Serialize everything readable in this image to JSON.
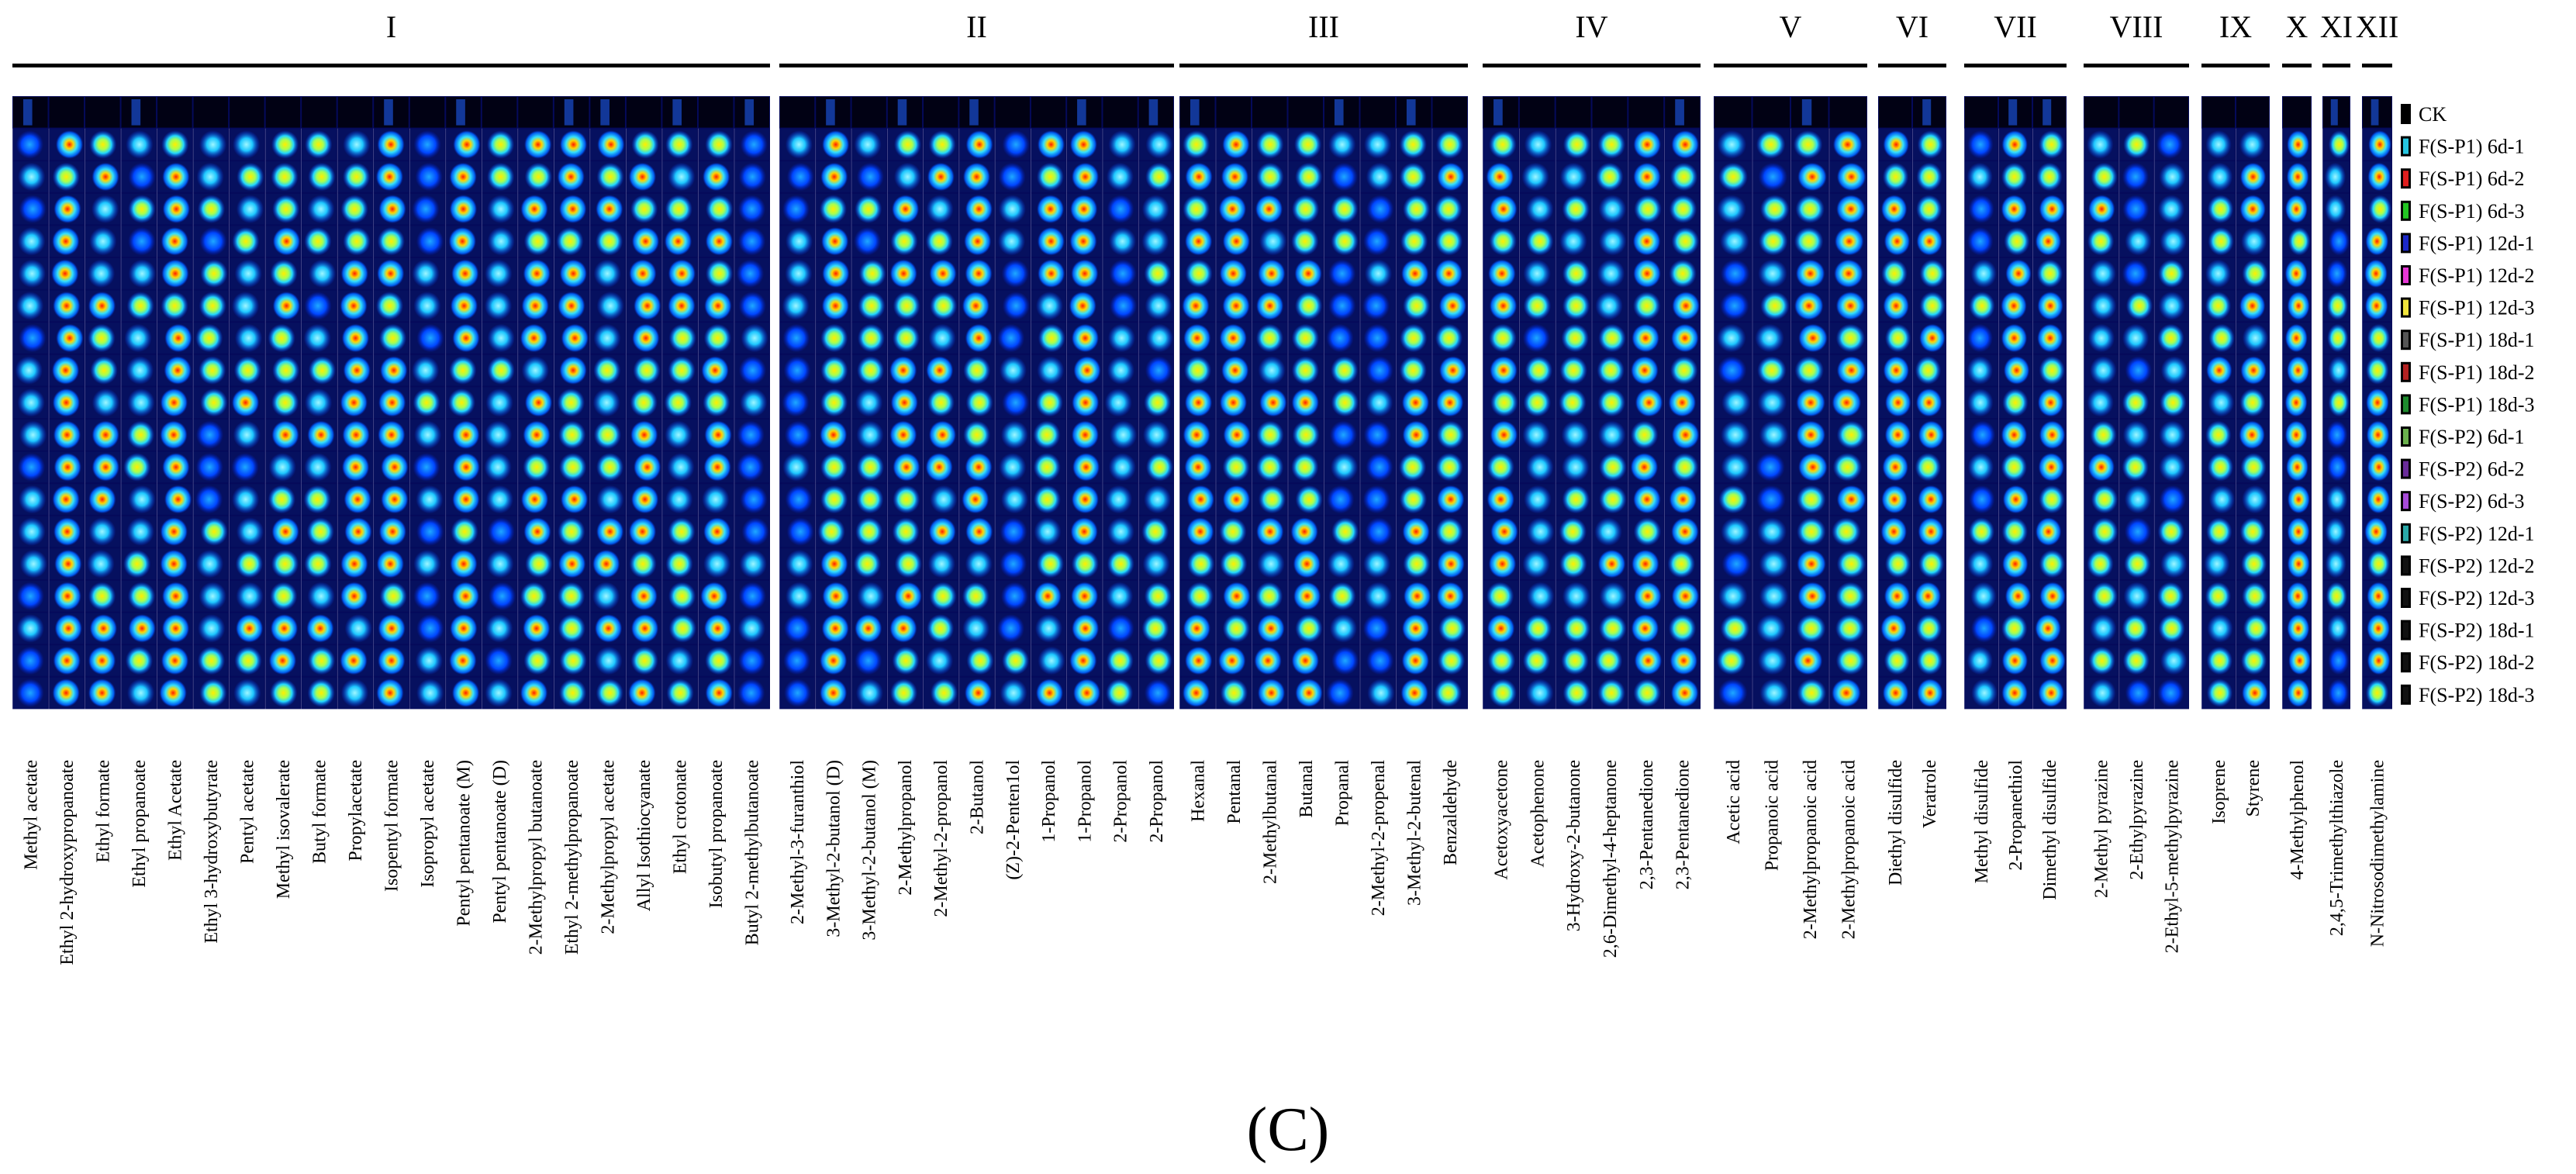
{
  "chart_data": {
    "type": "heatmap",
    "title": "",
    "caption": "(C)",
    "groups": [
      {
        "label": "I",
        "compounds": [
          "Methyl acetate",
          "Ethyl 2-hydroxypropanoate",
          "Ethyl formate",
          "Ethyl propanoate",
          "Ethyl Acetate",
          "Ethyl 3-hydroxybutyrate",
          "Pentyl acetate",
          "Methyl isovalerate",
          "Butyl formate",
          "Propylacetate",
          "Isopentyl formate",
          "Isopropyl acetate",
          "Pentyl pentanoate  (M)",
          "Pentyl pentanoate  (D)",
          "2-Methylpropyl butanoate",
          "Ethyl 2-methylpropanoate",
          "2-Methylpropyl acetate",
          "Allyl Isothiocyanate",
          "Ethyl crotonate",
          "Isobutyl propanoate",
          "Butyl 2-methylbutanoate"
        ]
      },
      {
        "label": "II",
        "compounds": [
          "2-Methyl-3-furanthiol",
          "3-Methyl-2-butanol (D)",
          "3-Methyl-2-butanol (M)",
          "2-Methylpropanol",
          "2-Methyl-2-propanol",
          "2-Butanol",
          "(Z)-2-Penten1ol",
          "1-Propanol",
          "1-Propanol",
          "2-Propanol",
          "2-Propanol"
        ]
      },
      {
        "label": "III",
        "compounds": [
          "Hexanal",
          "Pentanal",
          "2-Methylbutanal",
          "Butanal",
          "Propanal",
          "2-Methyl-2-propenal",
          "3-Methyl-2-butenal",
          "Benzaldehyde"
        ]
      },
      {
        "label": "IV",
        "compounds": [
          "Acetoxyacetone",
          "Acetophenone",
          "3-Hydroxy-2-butanone",
          "2,6-Dimethyl-4-heptanone",
          "2,3-Pentanedione",
          "2,3-Pentanedione"
        ]
      },
      {
        "label": "V",
        "compounds": [
          "Acetic acid",
          "Propanoic acid",
          "2-Methylpropanoic acid",
          "2-Methylpropanoic acid"
        ]
      },
      {
        "label": "VI",
        "compounds": [
          "Diethyl disulfide",
          "Veratrole"
        ]
      },
      {
        "label": "VII",
        "compounds": [
          "Methyl disulfide",
          "2-Propanethiol",
          "Dimethyl disulfide"
        ]
      },
      {
        "label": "VIII",
        "compounds": [
          "2-Methyl pyrazine",
          "2-Ethylpyrazine",
          "2-Ethyl-5-methylpyrazine"
        ]
      },
      {
        "label": "IX",
        "compounds": [
          "Isoprene",
          "Styrene"
        ]
      },
      {
        "label": "X",
        "compounds": [
          "4-Methylphenol"
        ]
      },
      {
        "label": "XI",
        "compounds": [
          "2,4,5-Trimethylthiazole"
        ]
      },
      {
        "label": "XII",
        "compounds": [
          "N-Nitrosodimethylamine"
        ]
      }
    ],
    "samples": [
      {
        "label": "CK",
        "color": "#000000"
      },
      {
        "label": "F(S-P1)  6d-1",
        "color": "#27c6e0"
      },
      {
        "label": "F(S-P1)  6d-2",
        "color": "#e01e1e"
      },
      {
        "label": "F(S-P1)  6d-3",
        "color": "#22c422"
      },
      {
        "label": "F(S-P1)  12d-1",
        "color": "#1b28c8"
      },
      {
        "label": "F(S-P1)  12d-2",
        "color": "#e637d6"
      },
      {
        "label": "F(S-P1)  12d-3",
        "color": "#f0e43c"
      },
      {
        "label": "F(S-P1)  18d-1",
        "color": "#555555"
      },
      {
        "label": "F(S-P1)  18d-2",
        "color": "#b32222"
      },
      {
        "label": "F(S-P1)  18d-3",
        "color": "#1e8a2e"
      },
      {
        "label": "F(S-P2)  6d-1",
        "color": "#6ab04c"
      },
      {
        "label": "F(S-P2)  6d-2",
        "color": "#6a2c9a"
      },
      {
        "label": "F(S-P2)  6d-3",
        "color": "#a74ad8"
      },
      {
        "label": "F(S-P2)  12d-1",
        "color": "#2aa8a8"
      },
      {
        "label": "F(S-P2)  12d-2",
        "color": "#111111"
      },
      {
        "label": "F(S-P2)  12d-3",
        "color": "#111111"
      },
      {
        "label": "F(S-P2)  18d-1",
        "color": "#111111"
      },
      {
        "label": "F(S-P2)  18d-2",
        "color": "#111111"
      },
      {
        "label": "F(S-P2)  18d-3",
        "color": "#111111"
      }
    ],
    "colorscale": [
      "#00007a",
      "#0028ff",
      "#00c8ff",
      "#ffff00",
      "#ff0000"
    ],
    "legend_position": "right"
  }
}
